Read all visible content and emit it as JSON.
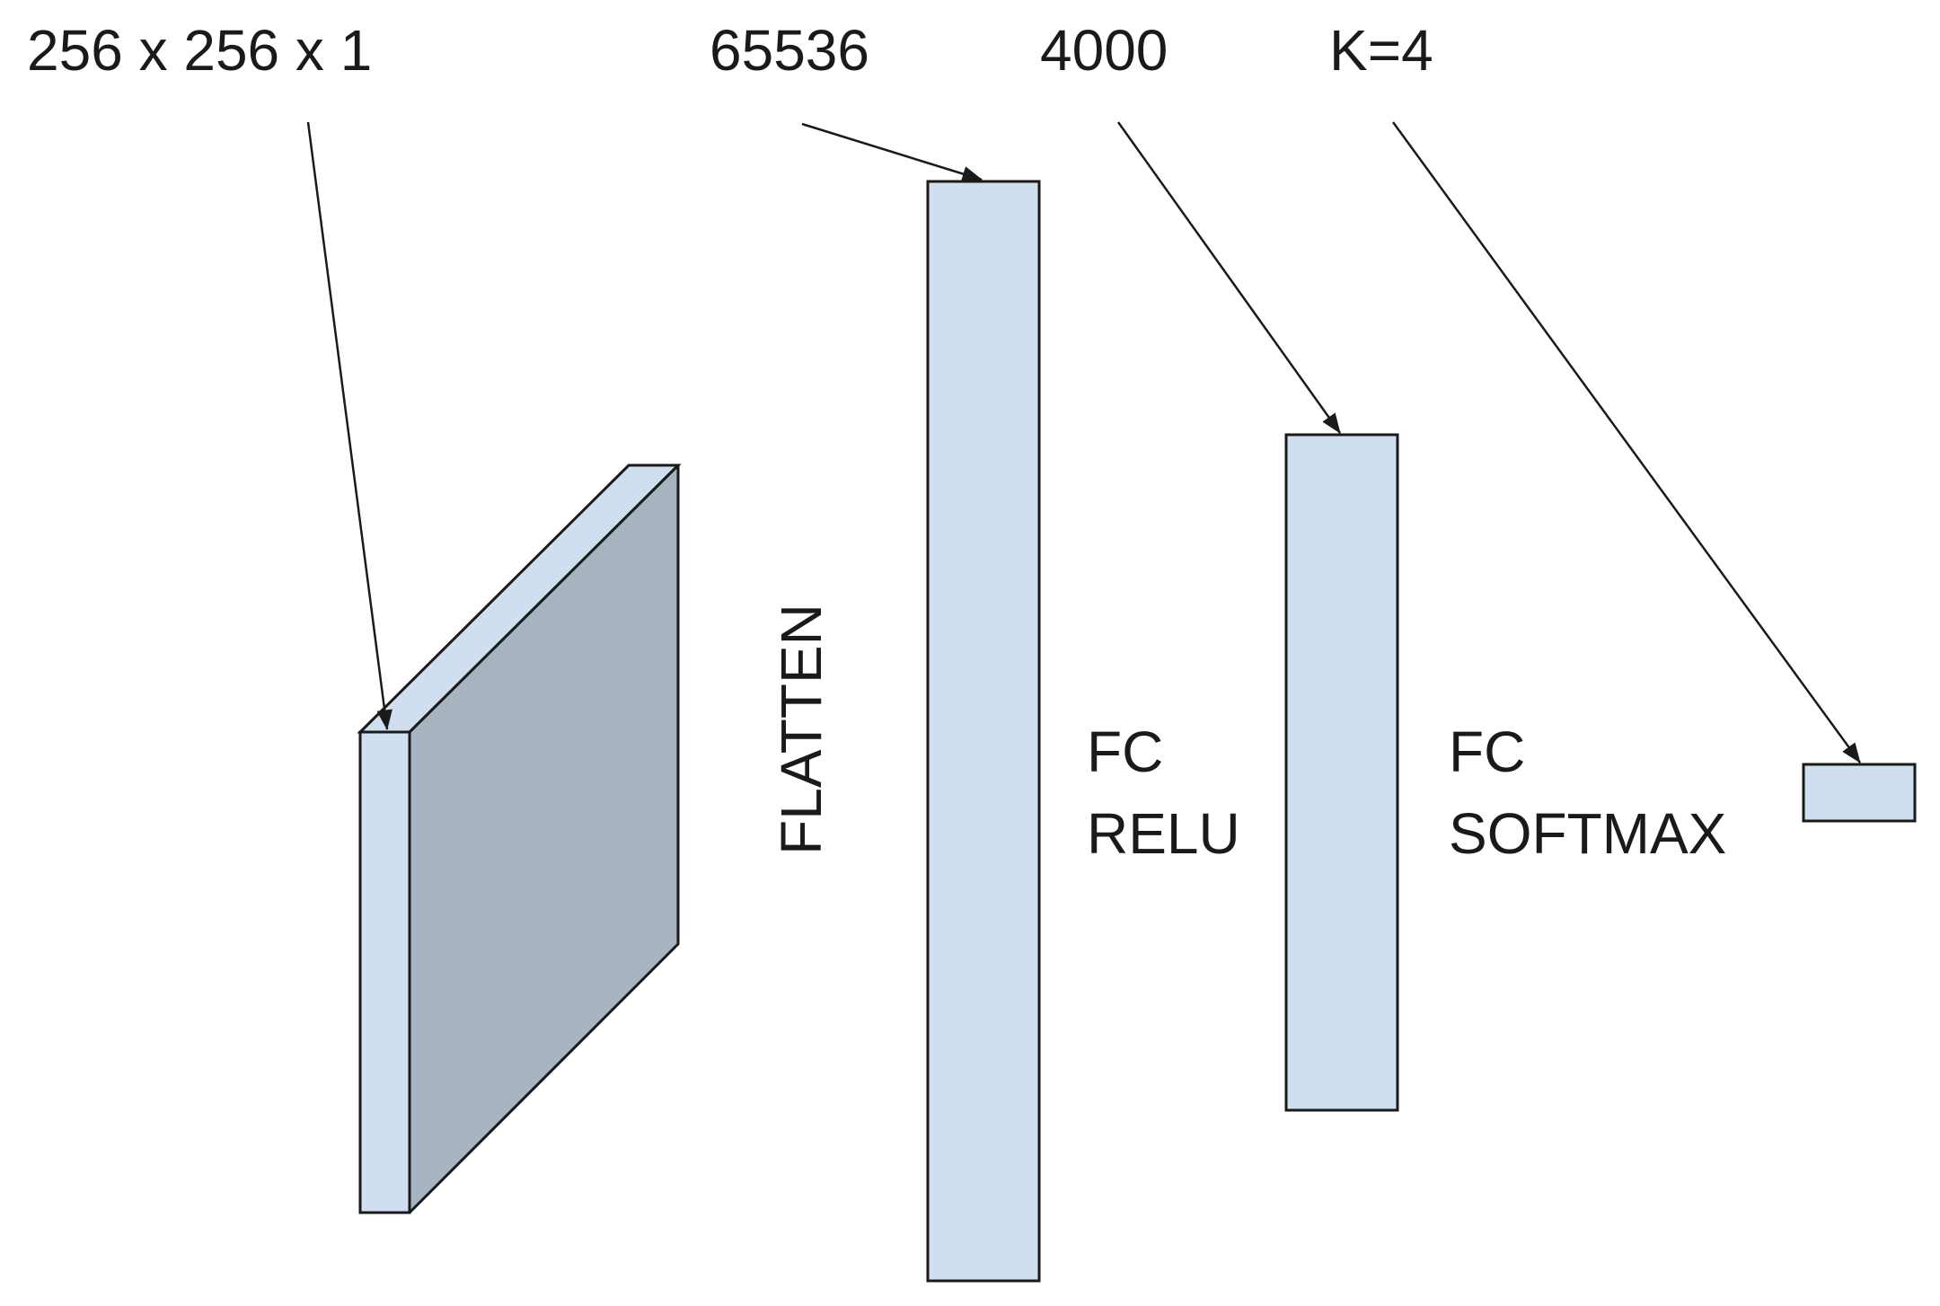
{
  "labels": {
    "input_dims": "256 x 256 x 1",
    "flatten_dims": "65536",
    "hidden_dims": "4000",
    "output_dims": "K=4",
    "flatten_op": "FLATTEN",
    "fc_relu_line1": "FC",
    "fc_relu_line2": "RELU",
    "fc_softmax_line1": "FC",
    "fc_softmax_line2": "SOFTMAX"
  },
  "colors": {
    "layer_fill": "#cfdff0",
    "volume_side_fill": "#a7b3c1",
    "stroke": "#1a1a1a"
  }
}
